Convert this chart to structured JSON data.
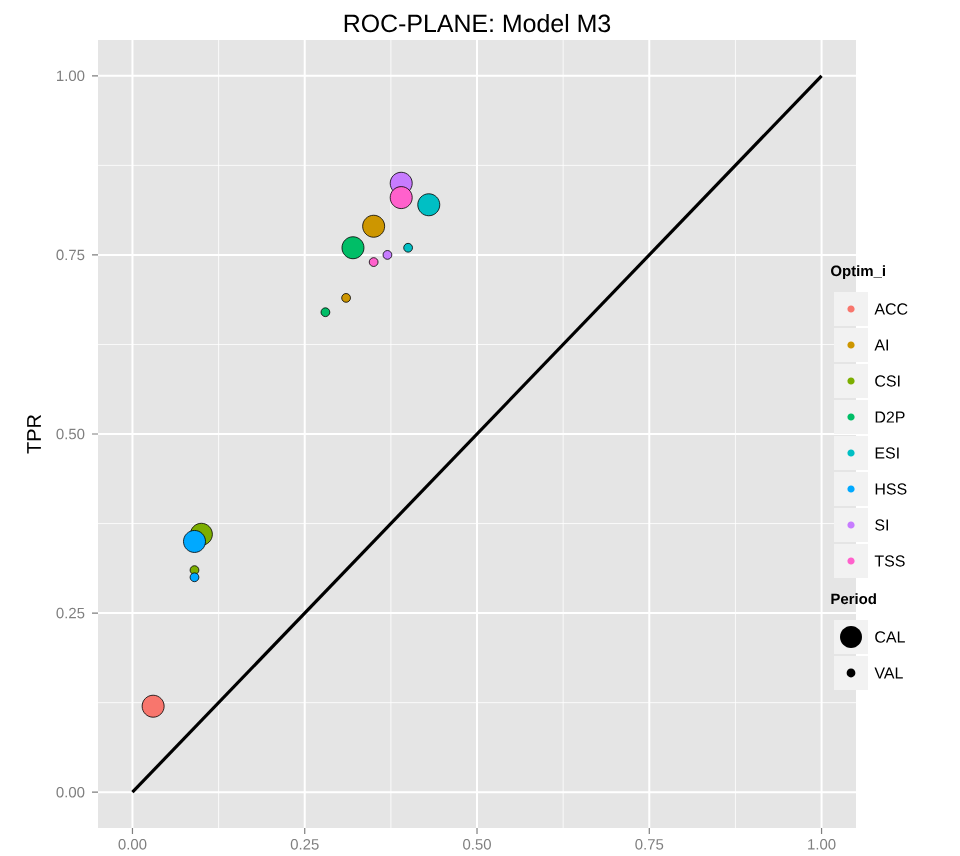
{
  "chart_data": {
    "type": "bubble",
    "title": "ROC-PLANE: Model M3",
    "ylabel": "TPR",
    "legend_title": "Optim_i",
    "annotations": [
      "Period"
    ],
    "xlim": [
      -0.05,
      1.05
    ],
    "ylim": [
      -0.05,
      1.05
    ],
    "xticks": [
      {
        "value": 0,
        "label": "0.00"
      },
      {
        "value": 0.25,
        "label": "0.25"
      },
      {
        "value": 0.5,
        "label": "0.50"
      },
      {
        "value": 0.75,
        "label": "0.75"
      },
      {
        "value": 1,
        "label": "1.00"
      }
    ],
    "yticks": [
      {
        "value": 0,
        "label": "0.00"
      },
      {
        "value": 0.25,
        "label": "0.25"
      },
      {
        "value": 0.5,
        "label": "0.50"
      },
      {
        "value": 0.75,
        "label": "0.75"
      },
      {
        "value": 1,
        "label": "1.00"
      }
    ],
    "grid": true,
    "legend": "right",
    "size_legend": [
      {
        "value": 1,
        "label": "CAL"
      },
      {
        "value": 0.16,
        "label": "VAL"
      }
    ],
    "series": [
      {
        "type": "line",
        "color": "#000000",
        "x": [
          0,
          1
        ],
        "values": [
          0,
          1
        ]
      },
      {
        "name": "ACC",
        "color": "#F8766D",
        "x": [
          0.03
        ],
        "values": [
          0.12
        ],
        "sizes": [
          1
        ]
      },
      {
        "name": "AI",
        "color": "#CD9600",
        "x": [
          0.35,
          0.31
        ],
        "values": [
          0.79,
          0.69
        ],
        "sizes": [
          1,
          0.16
        ]
      },
      {
        "name": "CSI",
        "color": "#7CAE00",
        "x": [
          0.1,
          0.09
        ],
        "values": [
          0.36,
          0.31
        ],
        "sizes": [
          1,
          0.16
        ]
      },
      {
        "name": "D2P",
        "color": "#00BE67",
        "x": [
          0.32,
          0.28
        ],
        "values": [
          0.76,
          0.67
        ],
        "sizes": [
          1,
          0.16
        ]
      },
      {
        "name": "ESI",
        "color": "#00BFC4",
        "x": [
          0.43,
          0.4
        ],
        "values": [
          0.82,
          0.76
        ],
        "sizes": [
          1,
          0.16
        ]
      },
      {
        "name": "HSS",
        "color": "#00A9FF",
        "x": [
          0.09,
          0.09
        ],
        "values": [
          0.35,
          0.3
        ],
        "sizes": [
          1,
          0.16
        ]
      },
      {
        "name": "SI",
        "color": "#C77CFF",
        "x": [
          0.39,
          0.37
        ],
        "values": [
          0.85,
          0.75
        ],
        "sizes": [
          1,
          0.16
        ]
      },
      {
        "name": "TSS",
        "color": "#FF61CC",
        "x": [
          0.39,
          0.35
        ],
        "values": [
          0.83,
          0.74
        ],
        "sizes": [
          1,
          0.16
        ]
      }
    ]
  }
}
